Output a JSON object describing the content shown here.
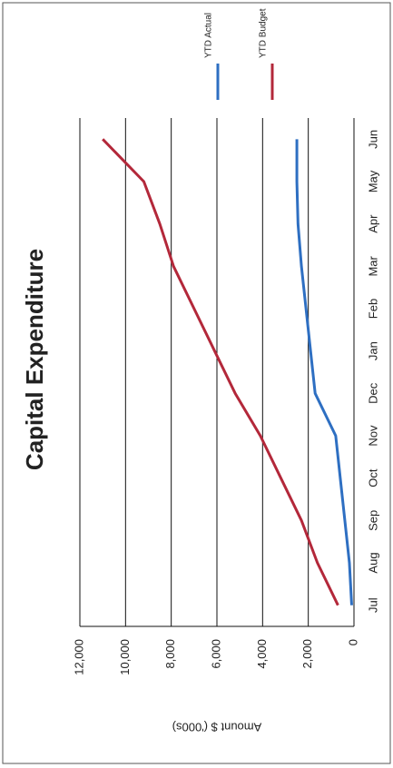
{
  "chart_data": {
    "type": "line",
    "title": "Capital Expenditure",
    "y_label": "Amount $ ('000s)",
    "categories": [
      "Jul",
      "Aug",
      "Sep",
      "Oct",
      "Nov",
      "Dec",
      "Jan",
      "Feb",
      "Mar",
      "Apr",
      "May",
      "Jun"
    ],
    "series": [
      {
        "name": "YTD Actual",
        "color": "#2e6fc2",
        "values": [
          100,
          200,
          400,
          600,
          800,
          1700,
          1900,
          2100,
          2300,
          2450,
          2500,
          2500
        ]
      },
      {
        "name": "YTD Budget",
        "color": "#b3283a",
        "values": [
          700,
          1600,
          2300,
          3200,
          4100,
          5200,
          6100,
          7000,
          7900,
          8500,
          9200,
          11000
        ]
      }
    ],
    "ylim": [
      0,
      12000
    ],
    "yticks": [
      0,
      {
        "value": 2000,
        "label": "2,000"
      },
      {
        "value": 4000,
        "label": "4,000"
      },
      {
        "value": 6000,
        "label": "6,000"
      },
      {
        "value": 8000,
        "label": "8,000"
      },
      {
        "value": 10000,
        "label": "10,000"
      },
      {
        "value": 12000,
        "label": "12,000"
      }
    ],
    "grid": true,
    "legend": "right"
  }
}
